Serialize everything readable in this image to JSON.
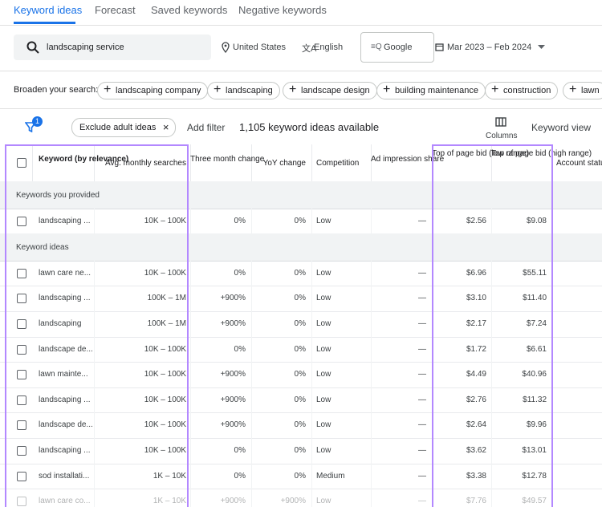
{
  "tabs": [
    "Keyword ideas",
    "Forecast",
    "Saved keywords",
    "Negative keywords"
  ],
  "search": {
    "query": "landscaping service",
    "location": "United States",
    "language": "English",
    "network": "Google",
    "date_range": "Mar 2023 – Feb 2024"
  },
  "broaden": {
    "label": "Broaden your search:",
    "chips": [
      "landscaping company",
      "landscaping",
      "landscape design",
      "building maintenance",
      "construction",
      "lawn"
    ]
  },
  "toolbar": {
    "filter_count": "1",
    "filter_chip": "Exclude adult ideas",
    "add_filter": "Add filter",
    "count_text": "1,105 keyword ideas available",
    "columns": "Columns",
    "view": "Keyword view"
  },
  "table": {
    "headers": [
      "Keyword (by relevance)",
      "Avg. monthly searches",
      "Three month change",
      "YoY change",
      "Competition",
      "Ad impression share",
      "Top of page bid (low range)",
      "Top of page bid (high range)",
      "Account status"
    ],
    "groups": [
      {
        "title": "Keywords you provided",
        "rows": [
          [
            "landscaping ...",
            "10K – 100K",
            "0%",
            "0%",
            "Low",
            "—",
            "$2.56",
            "$9.08"
          ]
        ]
      },
      {
        "title": "Keyword ideas",
        "rows": [
          [
            "lawn care ne...",
            "10K – 100K",
            "0%",
            "0%",
            "Low",
            "—",
            "$6.96",
            "$55.11"
          ],
          [
            "landscaping ...",
            "100K – 1M",
            "+900%",
            "0%",
            "Low",
            "—",
            "$3.10",
            "$11.40"
          ],
          [
            "landscaping",
            "100K – 1M",
            "+900%",
            "0%",
            "Low",
            "—",
            "$2.17",
            "$7.24"
          ],
          [
            "landscape de...",
            "10K – 100K",
            "0%",
            "0%",
            "Low",
            "—",
            "$1.72",
            "$6.61"
          ],
          [
            "lawn mainte...",
            "10K – 100K",
            "+900%",
            "0%",
            "Low",
            "—",
            "$4.49",
            "$40.96"
          ],
          [
            "landscaping ...",
            "10K – 100K",
            "+900%",
            "0%",
            "Low",
            "—",
            "$2.76",
            "$11.32"
          ],
          [
            "landscape de...",
            "10K – 100K",
            "+900%",
            "0%",
            "Low",
            "—",
            "$2.64",
            "$9.96"
          ],
          [
            "landscaping ...",
            "10K – 100K",
            "0%",
            "0%",
            "Low",
            "—",
            "$3.62",
            "$13.01"
          ],
          [
            "sod installati...",
            "1K – 10K",
            "0%",
            "0%",
            "Medium",
            "—",
            "$3.38",
            "$12.78"
          ],
          [
            "lawn care co...",
            "1K – 10K",
            "+900%",
            "+900%",
            "Low",
            "—",
            "$7.76",
            "$49.57"
          ]
        ]
      }
    ]
  }
}
